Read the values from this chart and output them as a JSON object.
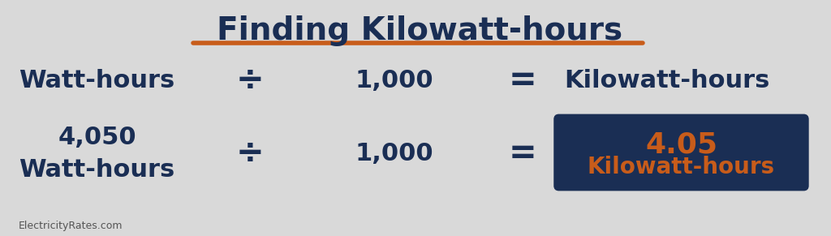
{
  "bg_color": "#d9d9d9",
  "title": "Finding Kilowatt-hours",
  "title_color": "#1a2e54",
  "title_fontsize": 28,
  "underline_color": "#c85c1a",
  "row1": {
    "col1": "Watt-hours",
    "col2": "÷",
    "col3": "1,000",
    "col4": "=",
    "col5": "Kilowatt-hours"
  },
  "row2": {
    "col1_line1": "4,050",
    "col1_line2": "Watt-hours",
    "col2": "÷",
    "col3": "1,000",
    "col4": "=",
    "col5_line1": "4.05",
    "col5_line2": "Kilowatt-hours"
  },
  "dark_color": "#1a2e54",
  "orange_color": "#c85c1a",
  "formula_fontsize": 22,
  "operator_fontsize": 30,
  "result_box_color": "#1a2e54",
  "result_text_color": "#c85c1a",
  "watermark": "ElectricityRates.com",
  "watermark_color": "#555555",
  "watermark_fontsize": 9
}
